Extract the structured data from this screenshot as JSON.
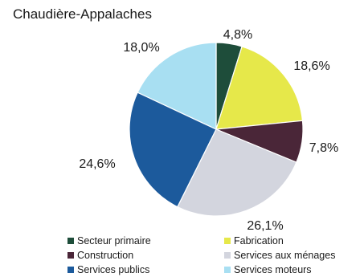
{
  "chart_data": {
    "type": "pie",
    "title": "Chaudière-Appalaches",
    "slices": [
      {
        "name": "Secteur primaire",
        "value": 4.8,
        "label": "4,8%",
        "color": "#1e4d3a"
      },
      {
        "name": "Fabrication",
        "value": 18.6,
        "label": "18,6%",
        "color": "#e6e84a"
      },
      {
        "name": "Construction",
        "value": 7.8,
        "label": "7,8%",
        "color": "#4a2638"
      },
      {
        "name": "Services aux ménages",
        "value": 26.1,
        "label": "26,1%",
        "color": "#d3d5de"
      },
      {
        "name": "Services publics",
        "value": 24.6,
        "label": "24,6%",
        "color": "#1c5a9c"
      },
      {
        "name": "Services moteurs",
        "value": 18.0,
        "label": "18,0%",
        "color": "#a8dff2"
      }
    ],
    "legend_placement": "bottom"
  }
}
